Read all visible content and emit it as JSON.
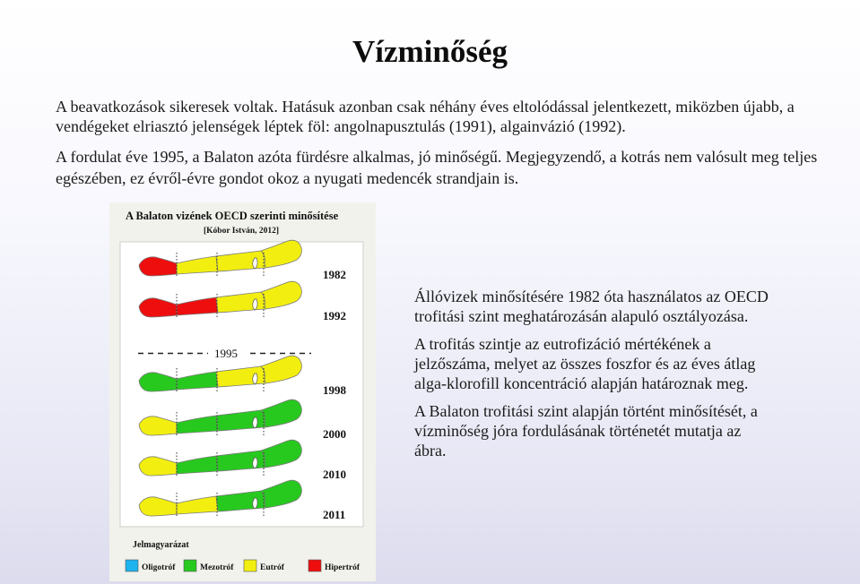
{
  "slide": {
    "title": "Vízminőség",
    "intro": "A beavatkozások sikeresek voltak. Hatásuk azonban csak néhány éves eltolódással jelentkezett, miközben újabb, a vendégeket elriasztó jelenségek léptek föl: angolnapusztulás (1991), algainvázió (1992).",
    "para2": "A fordulat éve 1995, a Balaton azóta fürdésre alkalmas, jó minőségű. Megjegyzendő, a kotrás nem valósult meg teljes egészében, ez évről-évre gondot okoz a nyugati medencék strandjain is.",
    "right_paragraphs": [
      "Állóvizek minősítésére 1982 óta használatos az OECD trofitási szint meghatározásán alapuló osztályozása.",
      "A trofitás szintje az eutrofizáció mértékének a jelzőszáma, melyet az összes foszfor és az éves átlag alga-klorofill koncentráció alapján határoznak meg.",
      "A Balaton trofitási szint alapján történt minősítését, a vízminőség jóra fordulásának történetét mutatja az ábra."
    ]
  },
  "figure": {
    "title": "A Balaton vizének OECD szerinti minősítése",
    "source": "[Kóbor István, 2012]",
    "turning_point_label": "1995",
    "legend_title": "Jelmagyarázat",
    "legend": [
      {
        "key": "oligotrof",
        "label": "Oligotróf",
        "color": "#1cb3ee"
      },
      {
        "key": "mezotrof",
        "label": "Mezotróf",
        "color": "#27c91e"
      },
      {
        "key": "eutrof",
        "label": "Eutróf",
        "color": "#f2ef10"
      },
      {
        "key": "hipertrof",
        "label": "Hipertróf",
        "color": "#ee0e0e"
      }
    ],
    "years": [
      {
        "year": "1982",
        "basins": [
          "hipertrof",
          "eutrof",
          "eutrof",
          "eutrof"
        ]
      },
      {
        "year": "1992",
        "basins": [
          "hipertrof",
          "hipertrof",
          "eutrof",
          "eutrof"
        ]
      },
      {
        "year": "1998",
        "basins": [
          "mezotrof",
          "mezotrof",
          "eutrof",
          "eutrof"
        ]
      },
      {
        "year": "2000",
        "basins": [
          "eutrof",
          "mezotrof",
          "mezotrof",
          "mezotrof"
        ]
      },
      {
        "year": "2010",
        "basins": [
          "eutrof",
          "mezotrof",
          "mezotrof",
          "mezotrof"
        ]
      },
      {
        "year": "2011",
        "basins": [
          "eutrof",
          "eutrof",
          "mezotrof",
          "mezotrof"
        ]
      }
    ]
  }
}
